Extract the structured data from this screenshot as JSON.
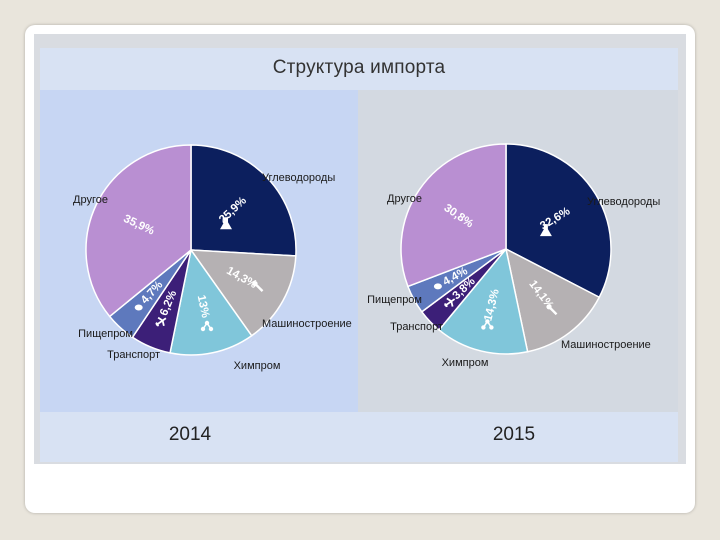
{
  "chart_data": [
    {
      "type": "pie",
      "title": "Структура импорта",
      "year_label": "2014",
      "slices": [
        {
          "label": "Углеводороды",
          "value": 25.9,
          "value_label": "25,9%",
          "color": "#0c1f5e"
        },
        {
          "label": "Машиностроение",
          "value": 14.3,
          "value_label": "14,3%",
          "color": "#b5b1b3"
        },
        {
          "label": "Химпром",
          "value": 13,
          "value_label": "13%",
          "color": "#80c6da"
        },
        {
          "label": "Транспорт",
          "value": 6.2,
          "value_label": "6,2%",
          "color": "#3c1f78"
        },
        {
          "label": "Пищепром",
          "value": 4.7,
          "value_label": "4,7%",
          "color": "#5e79bd"
        },
        {
          "label": "Другое",
          "value": 35.9,
          "value_label": "35,9%",
          "color": "#b98fd2"
        }
      ]
    },
    {
      "type": "pie",
      "year_label": "2015",
      "slices": [
        {
          "label": "Углеводороды",
          "value": 32.6,
          "value_label": "32,6%",
          "color": "#0c1f5e"
        },
        {
          "label": "Машиностроение",
          "value": 14.1,
          "value_label": "14,1%",
          "color": "#b5b1b3"
        },
        {
          "label": "Химпром",
          "value": 14.3,
          "value_label": "14,3%",
          "color": "#80c6da"
        },
        {
          "label": "Транспорт",
          "value": 3.8,
          "value_label": "3,8%",
          "color": "#3c1f78"
        },
        {
          "label": "Пищепром",
          "value": 4.4,
          "value_label": "4,4%",
          "color": "#5e79bd"
        },
        {
          "label": "Другое",
          "value": 30.8,
          "value_label": "30,8%",
          "color": "#b98fd2"
        }
      ]
    }
  ],
  "icons": [
    "flask-icon",
    "wrench-icon",
    "molecule-icon",
    "airplane-icon",
    "food-icon"
  ]
}
